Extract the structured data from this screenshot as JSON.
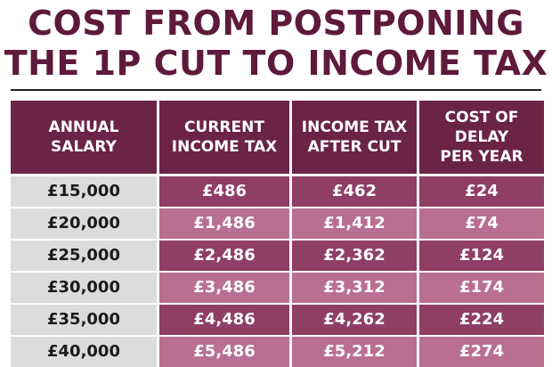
{
  "title_lines": [
    "COST FROM POSTPONING",
    "THE 1P CUT TO INCOME TAX"
  ],
  "chart_data": {
    "type": "table",
    "title": "COST FROM POSTPONING THE 1P CUT TO INCOME TAX",
    "columns": [
      "ANNUAL\nSALARY",
      "CURRENT\nINCOME TAX",
      "INCOME TAX\nAFTER CUT",
      "COST OF DELAY\nPER YEAR"
    ],
    "rows": [
      [
        "£15,000",
        "£486",
        "£462",
        "£24"
      ],
      [
        "£20,000",
        "£1,486",
        "£1,412",
        "£74"
      ],
      [
        "£25,000",
        "£2,486",
        "£2,362",
        "£124"
      ],
      [
        "£30,000",
        "£3,486",
        "£3,312",
        "£174"
      ],
      [
        "£35,000",
        "£4,486",
        "£4,262",
        "£224"
      ],
      [
        "£40,000",
        "£5,486",
        "£5,212",
        "£274"
      ]
    ]
  },
  "colors": {
    "title": "#5e1a3b",
    "header_bg": "#6b2346",
    "row_dark": "#8f3e66",
    "row_light": "#b86f92",
    "salary_bg": "#dcdcdc"
  }
}
